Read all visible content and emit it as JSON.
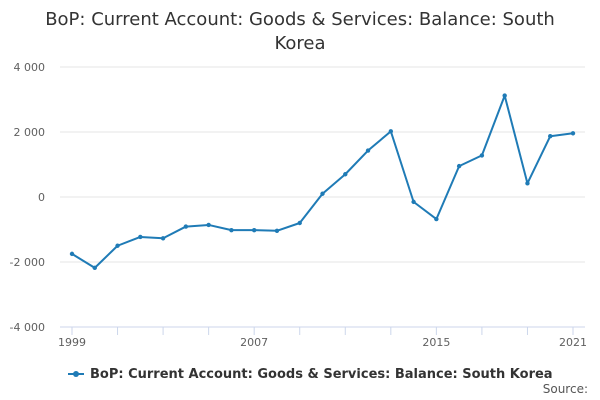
{
  "chart_data": {
    "type": "line",
    "title_lines": [
      "BoP: Current Account: Goods & Services: Balance: South",
      "Korea"
    ],
    "x": [
      1999,
      2000,
      2001,
      2002,
      2003,
      2004,
      2005,
      2006,
      2007,
      2008,
      2009,
      2010,
      2011,
      2012,
      2013,
      2014,
      2015,
      2016,
      2017,
      2018,
      2019,
      2020,
      2021
    ],
    "series": [
      {
        "name": "BoP: Current Account: Goods & Services: Balance: South Korea",
        "color": "#1f7bb6",
        "values": [
          -1750,
          -2180,
          -1500,
          -1230,
          -1270,
          -910,
          -860,
          -1020,
          -1020,
          -1040,
          -800,
          100,
          700,
          1430,
          2020,
          -150,
          -680,
          950,
          1280,
          3120,
          420,
          1870,
          1960
        ]
      }
    ],
    "ylim": [
      -4000,
      4000
    ],
    "yticks": [
      -4000,
      -2000,
      0,
      2000,
      4000
    ],
    "ytick_labels": [
      "-4 000",
      "-2 000",
      "0",
      "2 000",
      "4 000"
    ],
    "xlim": [
      1999,
      2021
    ],
    "xticks_labeled": [
      1999,
      2007,
      2015,
      2021
    ],
    "xtick_labels": [
      "1999",
      "2007",
      "2015",
      "2021"
    ],
    "xticks_minor": [
      1999,
      2001,
      2003,
      2005,
      2007,
      2009,
      2011,
      2013,
      2015,
      2017,
      2019,
      2021
    ],
    "grid": true,
    "legend_position": "bottom",
    "source_label": "Source:"
  }
}
